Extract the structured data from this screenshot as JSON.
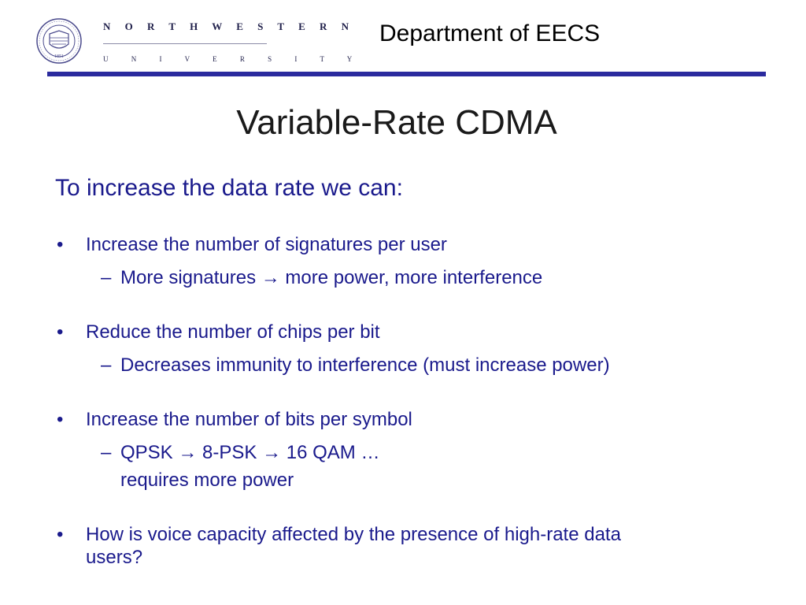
{
  "header": {
    "logo_top": "N O R T H W E S T E R N",
    "logo_bottom": "U N I V E R S I T Y",
    "seal_text": "NORTHWESTERN UNIVERSITY",
    "seal_year": "1851",
    "department": "Department of EECS"
  },
  "slide": {
    "title": "Variable-Rate CDMA",
    "intro": "To increase the data rate we can:",
    "bullet_symbol": "•",
    "dash_symbol": "–",
    "arrow_symbol": "→",
    "bullets": [
      {
        "text": "Increase the number of signatures per user",
        "sub": {
          "part1": "More signatures",
          "part2": "more power, more interference"
        }
      },
      {
        "text": "Reduce the number of chips per bit",
        "sub": {
          "text": "Decreases immunity to interference (must increase power)"
        }
      },
      {
        "text": "Increase the number of bits per symbol",
        "sub": {
          "part1": "QPSK",
          "part2": "8-PSK",
          "part3": "16 QAM …",
          "line2": "requires more power"
        }
      },
      {
        "text_line1": "How is voice capacity affected by the presence of high-rate data",
        "text_line2": "users?"
      }
    ]
  },
  "colors": {
    "accent": "#2b2b9e",
    "body_text": "#1a1a8c",
    "title_text": "#1a1a1a"
  }
}
